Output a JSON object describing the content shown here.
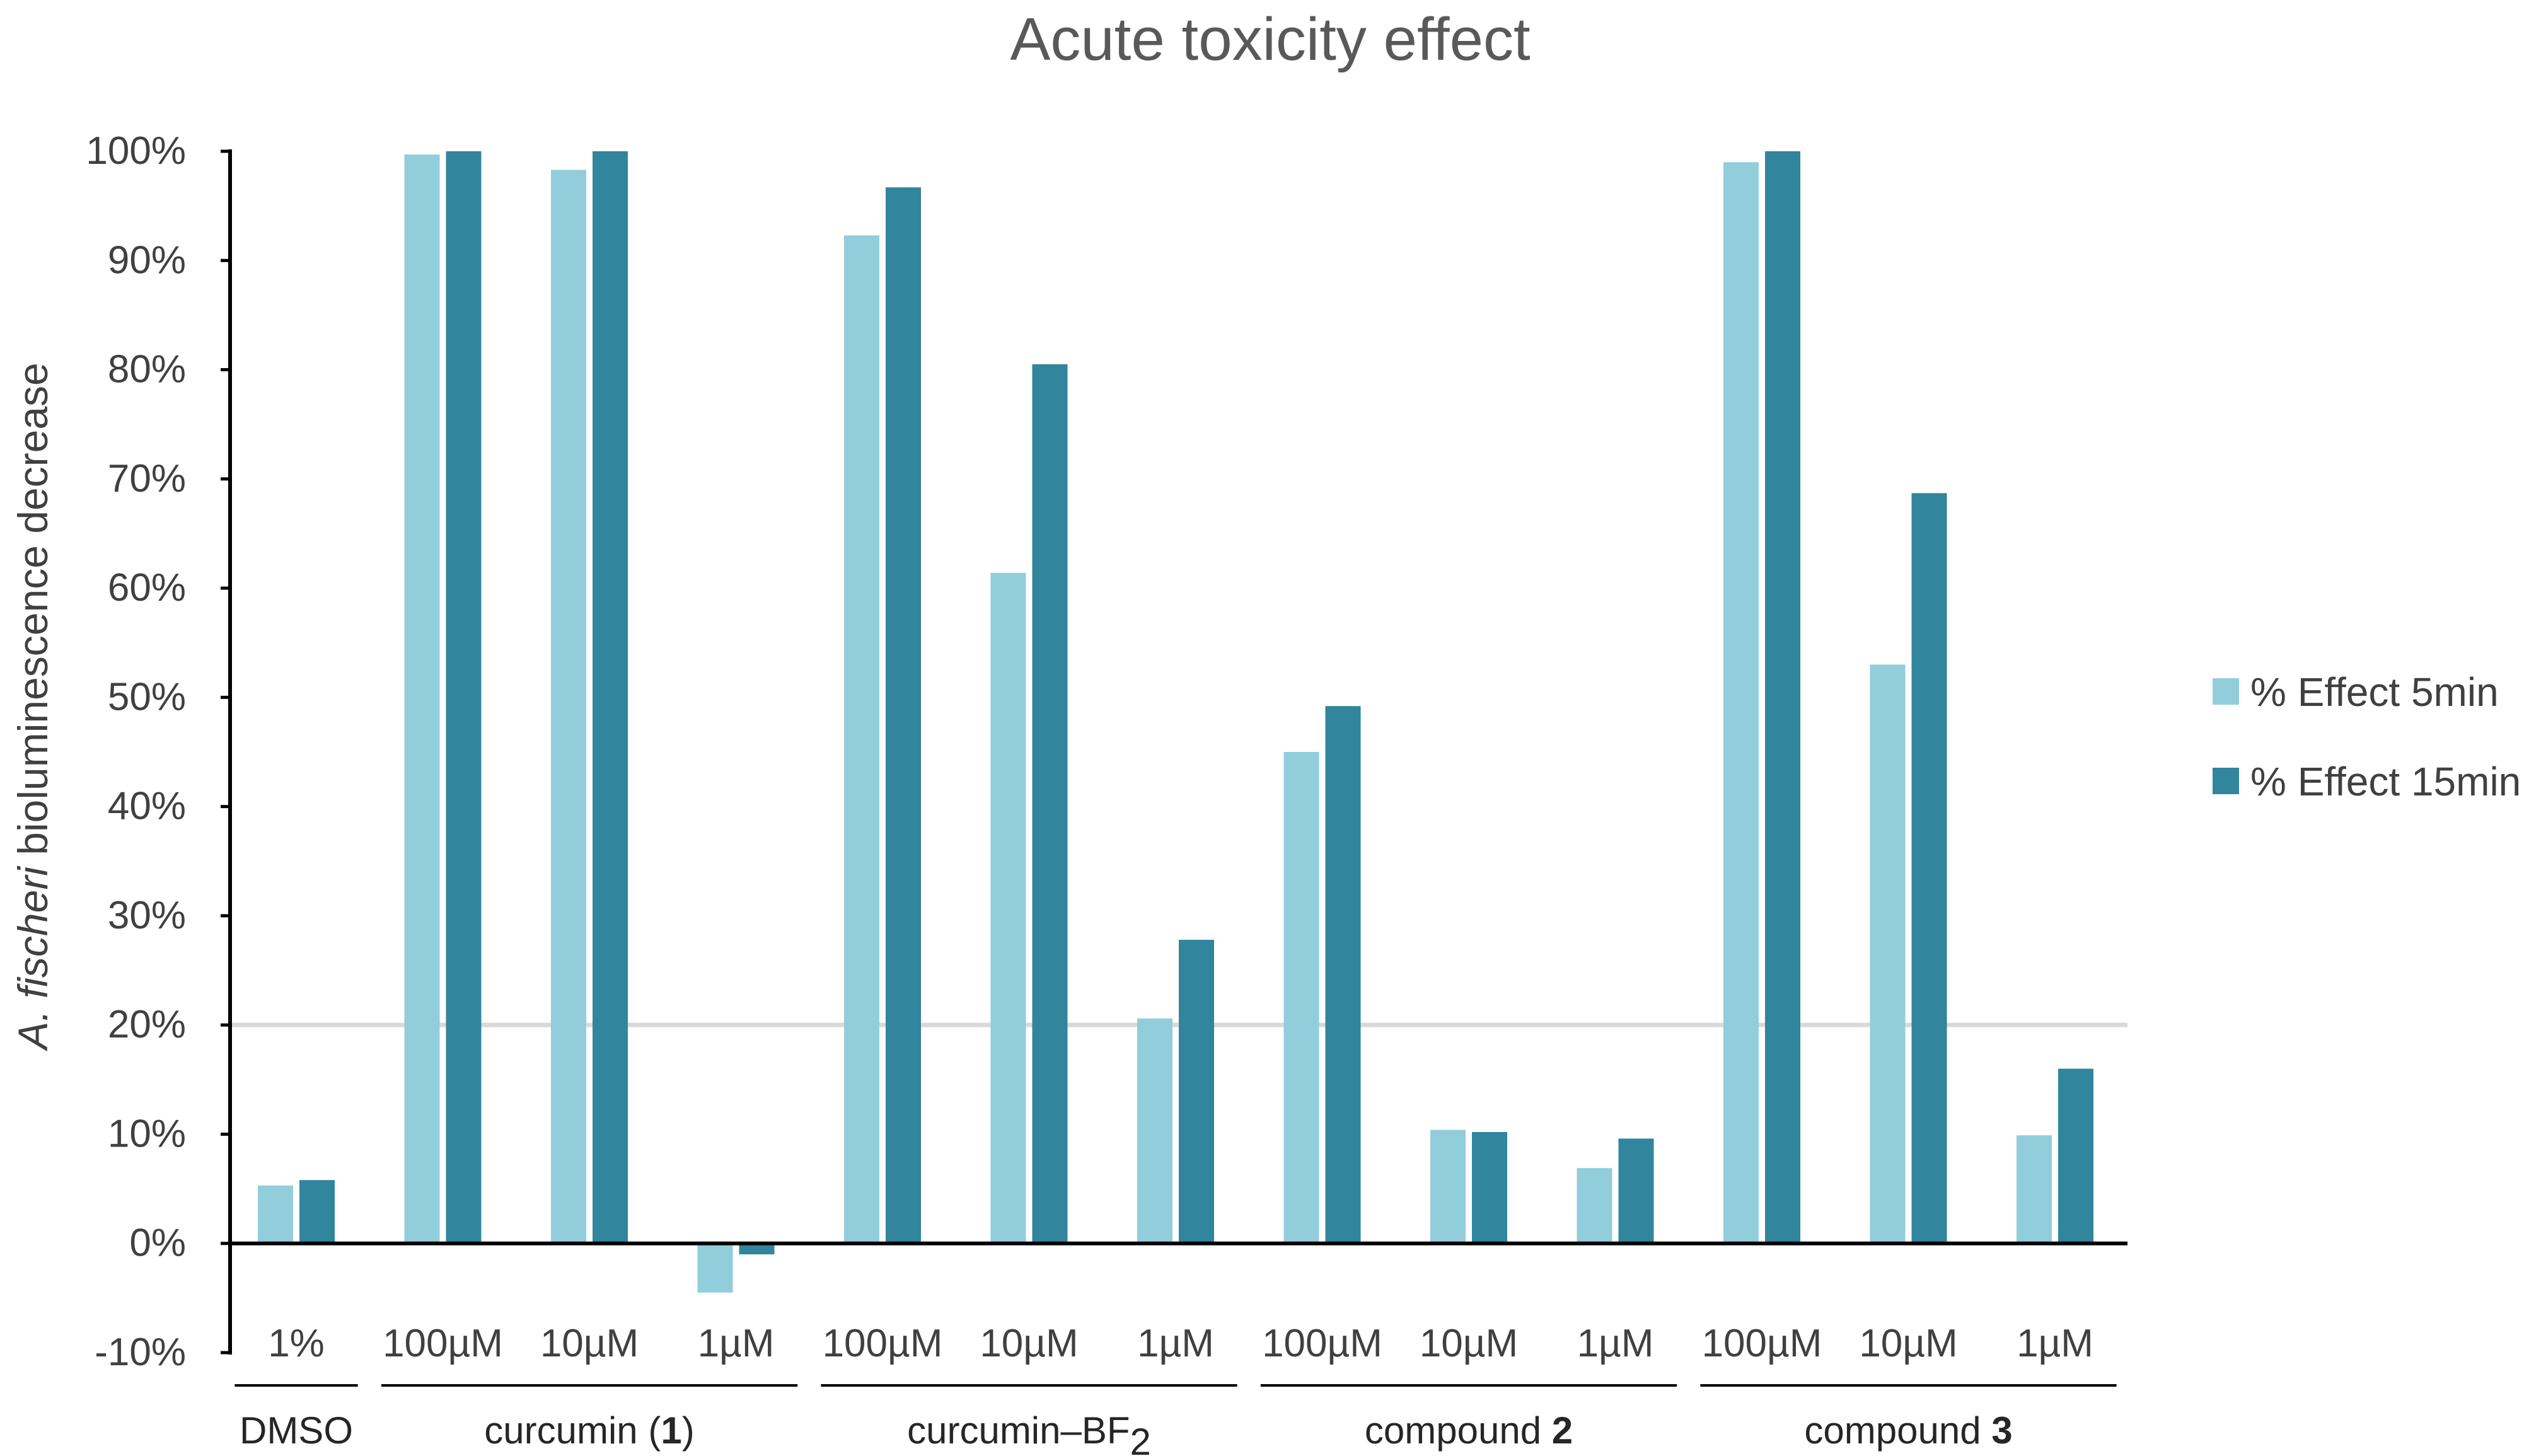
{
  "chart_data": {
    "type": "bar",
    "title": "Acute toxicity effect",
    "ylabel_italic": "A. fischeri",
    "ylabel_rest": " bioluminescence decrease",
    "ylim": [
      -10,
      100
    ],
    "yticks": [
      -10,
      0,
      10,
      20,
      30,
      40,
      50,
      60,
      70,
      80,
      90,
      100
    ],
    "ytick_labels": [
      "-10%",
      "0%",
      "10%",
      "20%",
      "30%",
      "40%",
      "50%",
      "60%",
      "70%",
      "80%",
      "90%",
      "100%"
    ],
    "reference_line": 20,
    "categories": [
      "1%",
      "100µM",
      "10µM",
      "1µM",
      "100µM",
      "10µM",
      "1µM",
      "100µM",
      "10µM",
      "1µM",
      "100µM",
      "10µM",
      "1µM"
    ],
    "groups": [
      {
        "name": "DMSO",
        "parts": [
          {
            "text": "DMSO",
            "bold": false
          }
        ],
        "start": 0,
        "end": 0
      },
      {
        "name": "curcumin (1)",
        "parts": [
          {
            "text": "curcumin (",
            "bold": false
          },
          {
            "text": "1",
            "bold": true
          },
          {
            "text": ")",
            "bold": false
          }
        ],
        "start": 1,
        "end": 3
      },
      {
        "name": "curcumin–BF2",
        "parts": [
          {
            "text": "curcumin–BF",
            "bold": false
          },
          {
            "text": "2",
            "bold": false,
            "sub": true
          }
        ],
        "start": 4,
        "end": 6
      },
      {
        "name": "compound 2",
        "parts": [
          {
            "text": "compound ",
            "bold": false
          },
          {
            "text": "2",
            "bold": true
          }
        ],
        "start": 7,
        "end": 9
      },
      {
        "name": "compound 3",
        "parts": [
          {
            "text": "compound ",
            "bold": false
          },
          {
            "text": "3",
            "bold": true
          }
        ],
        "start": 10,
        "end": 12
      }
    ],
    "series": [
      {
        "name": "% Effect 5min",
        "color": "#92CDDC",
        "values": [
          5.3,
          99.7,
          98.3,
          -4.5,
          92.3,
          61.4,
          20.6,
          45.0,
          10.4,
          6.9,
          99.0,
          53.0,
          9.9
        ]
      },
      {
        "name": "% Effect 15min",
        "color": "#31859C",
        "values": [
          5.8,
          100,
          100,
          -1.0,
          96.7,
          80.5,
          27.8,
          49.2,
          10.2,
          9.6,
          100,
          68.7,
          16.0
        ]
      }
    ],
    "legend_position": "right"
  }
}
